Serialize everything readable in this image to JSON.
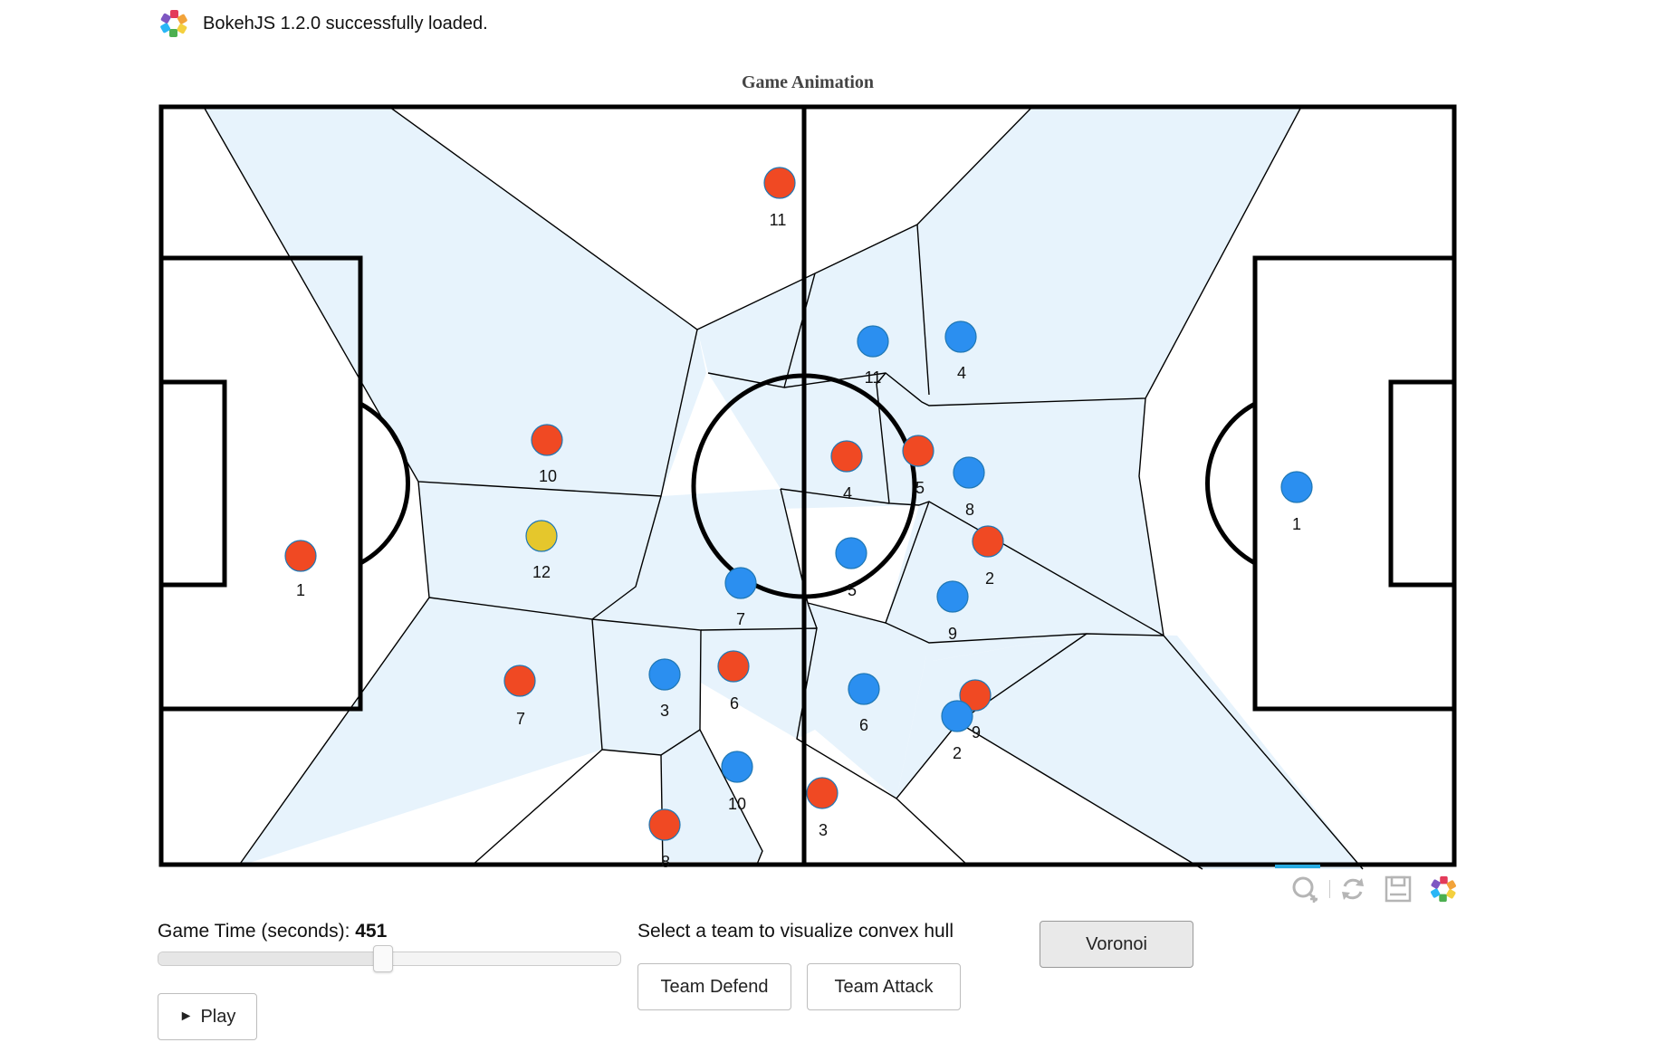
{
  "banner": {
    "text": "BokehJS 1.2.0 successfully loaded.",
    "logo_icon": "bokeh-logo-icon"
  },
  "plot": {
    "title": "Game Animation"
  },
  "colors": {
    "attack_team": "#f04923",
    "defend_team": "#2b8ff0",
    "ball": "#e5c72c",
    "voronoi_fill": "#e7f3fc",
    "lines": "#000000"
  },
  "players": {
    "attack": [
      {
        "label": "11"
      },
      {
        "label": "10"
      },
      {
        "label": "1"
      },
      {
        "label": "4"
      },
      {
        "label": "5"
      },
      {
        "label": "2"
      },
      {
        "label": "7"
      },
      {
        "label": "6"
      },
      {
        "label": "9"
      },
      {
        "label": "3"
      },
      {
        "label": "8"
      }
    ],
    "defend": [
      {
        "label": "11"
      },
      {
        "label": "4"
      },
      {
        "label": "8"
      },
      {
        "label": "1"
      },
      {
        "label": "5"
      },
      {
        "label": "7"
      },
      {
        "label": "9"
      },
      {
        "label": "3"
      },
      {
        "label": "6"
      },
      {
        "label": "2"
      },
      {
        "label": "10"
      }
    ],
    "ball": {
      "label": "12"
    }
  },
  "toolbar": {
    "tools": [
      "wheel-zoom-icon",
      "reset-icon",
      "save-icon",
      "bokeh-logo-icon"
    ]
  },
  "controls": {
    "slider_label": "Game Time (seconds):",
    "slider_value": "451",
    "slider_fraction": 0.485,
    "play_icon": "play-icon",
    "play_symbol": "►",
    "play_label": "Play",
    "hull_label": "Select a team to visualize convex hull",
    "team_defend_label": "Team Defend",
    "team_attack_label": "Team Attack",
    "voronoi_label": "Voronoi"
  }
}
